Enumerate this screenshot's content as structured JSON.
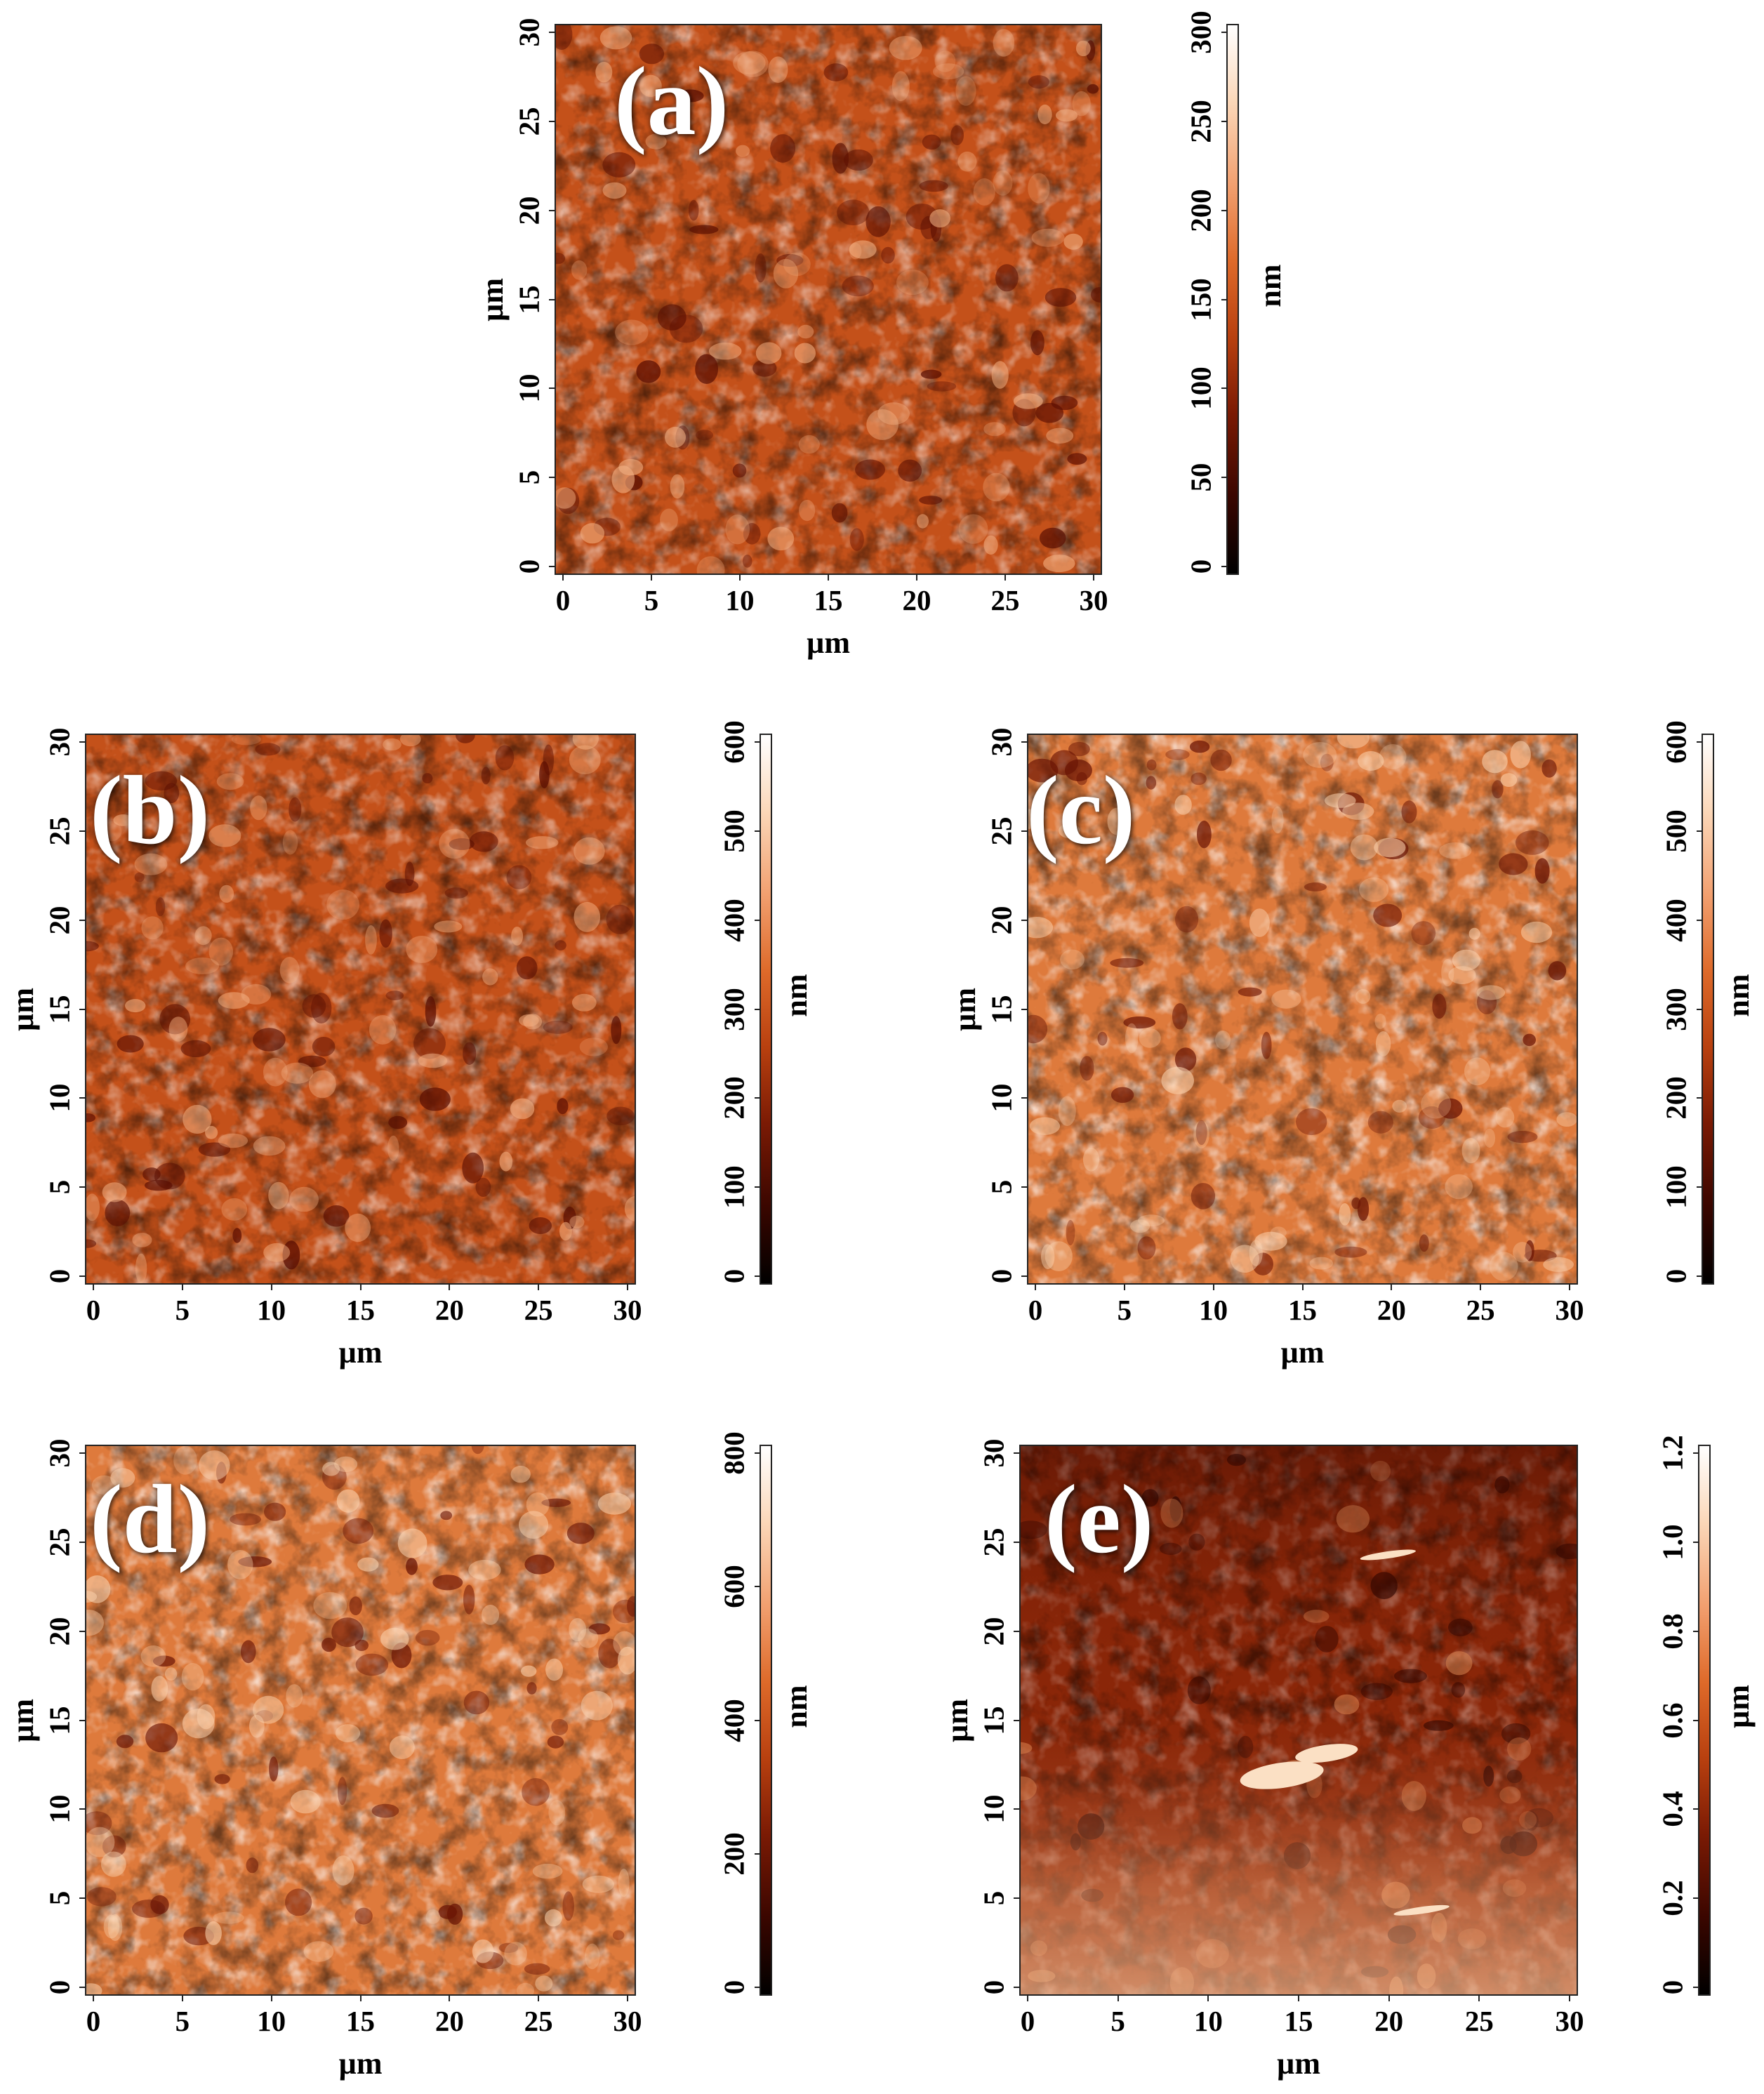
{
  "panels": [
    {
      "id": "a",
      "label": "(a)",
      "x_axis_label": "µm",
      "y_axis_label": "µm",
      "x_ticks": [
        "0",
        "5",
        "10",
        "15",
        "20",
        "25",
        "30"
      ],
      "y_ticks": [
        "0",
        "5",
        "10",
        "15",
        "20",
        "25",
        "30"
      ],
      "colorbar": {
        "unit": "nm",
        "ticks": [
          "0",
          "50",
          "100",
          "150",
          "200",
          "250",
          "300"
        ]
      },
      "tone": "medium"
    },
    {
      "id": "b",
      "label": "(b)",
      "x_axis_label": "µm",
      "y_axis_label": "µm",
      "x_ticks": [
        "0",
        "5",
        "10",
        "15",
        "20",
        "25",
        "30"
      ],
      "y_ticks": [
        "0",
        "5",
        "10",
        "15",
        "20",
        "25",
        "30"
      ],
      "colorbar": {
        "unit": "nm",
        "ticks": [
          "0",
          "100",
          "200",
          "300",
          "400",
          "500",
          "600"
        ]
      },
      "tone": "medium"
    },
    {
      "id": "c",
      "label": "(c)",
      "x_axis_label": "µm",
      "y_axis_label": "µm",
      "x_ticks": [
        "0",
        "5",
        "10",
        "15",
        "20",
        "25",
        "30"
      ],
      "y_ticks": [
        "0",
        "5",
        "10",
        "15",
        "20",
        "25",
        "30"
      ],
      "colorbar": {
        "unit": "nm",
        "ticks": [
          "0",
          "100",
          "200",
          "300",
          "400",
          "500",
          "600"
        ]
      },
      "tone": "light"
    },
    {
      "id": "d",
      "label": "(d)",
      "x_axis_label": "µm",
      "y_axis_label": "µm",
      "x_ticks": [
        "0",
        "5",
        "10",
        "15",
        "20",
        "25",
        "30"
      ],
      "y_ticks": [
        "0",
        "5",
        "10",
        "15",
        "20",
        "25",
        "30"
      ],
      "colorbar": {
        "unit": "nm",
        "ticks": [
          "0",
          "200",
          "400",
          "600",
          "800"
        ]
      },
      "tone": "light"
    },
    {
      "id": "e",
      "label": "(e)",
      "x_axis_label": "µm",
      "y_axis_label": "µm",
      "x_ticks": [
        "0",
        "5",
        "10",
        "15",
        "20",
        "25",
        "30"
      ],
      "y_ticks": [
        "0",
        "5",
        "10",
        "15",
        "20",
        "25",
        "30"
      ],
      "colorbar": {
        "unit": "µm",
        "ticks": [
          "0",
          "0.2",
          "0.4",
          "0.6",
          "0.8",
          "1.0",
          "1.2"
        ]
      },
      "tone": "dark"
    }
  ],
  "colors": {
    "colormap": [
      "#000000",
      "#3a0600",
      "#7a1a04",
      "#b8400f",
      "#de6a2a",
      "#f2a070",
      "#fbd7b8",
      "#ffffff"
    ],
    "frame": "#222222",
    "label_text": "#ffffff"
  }
}
